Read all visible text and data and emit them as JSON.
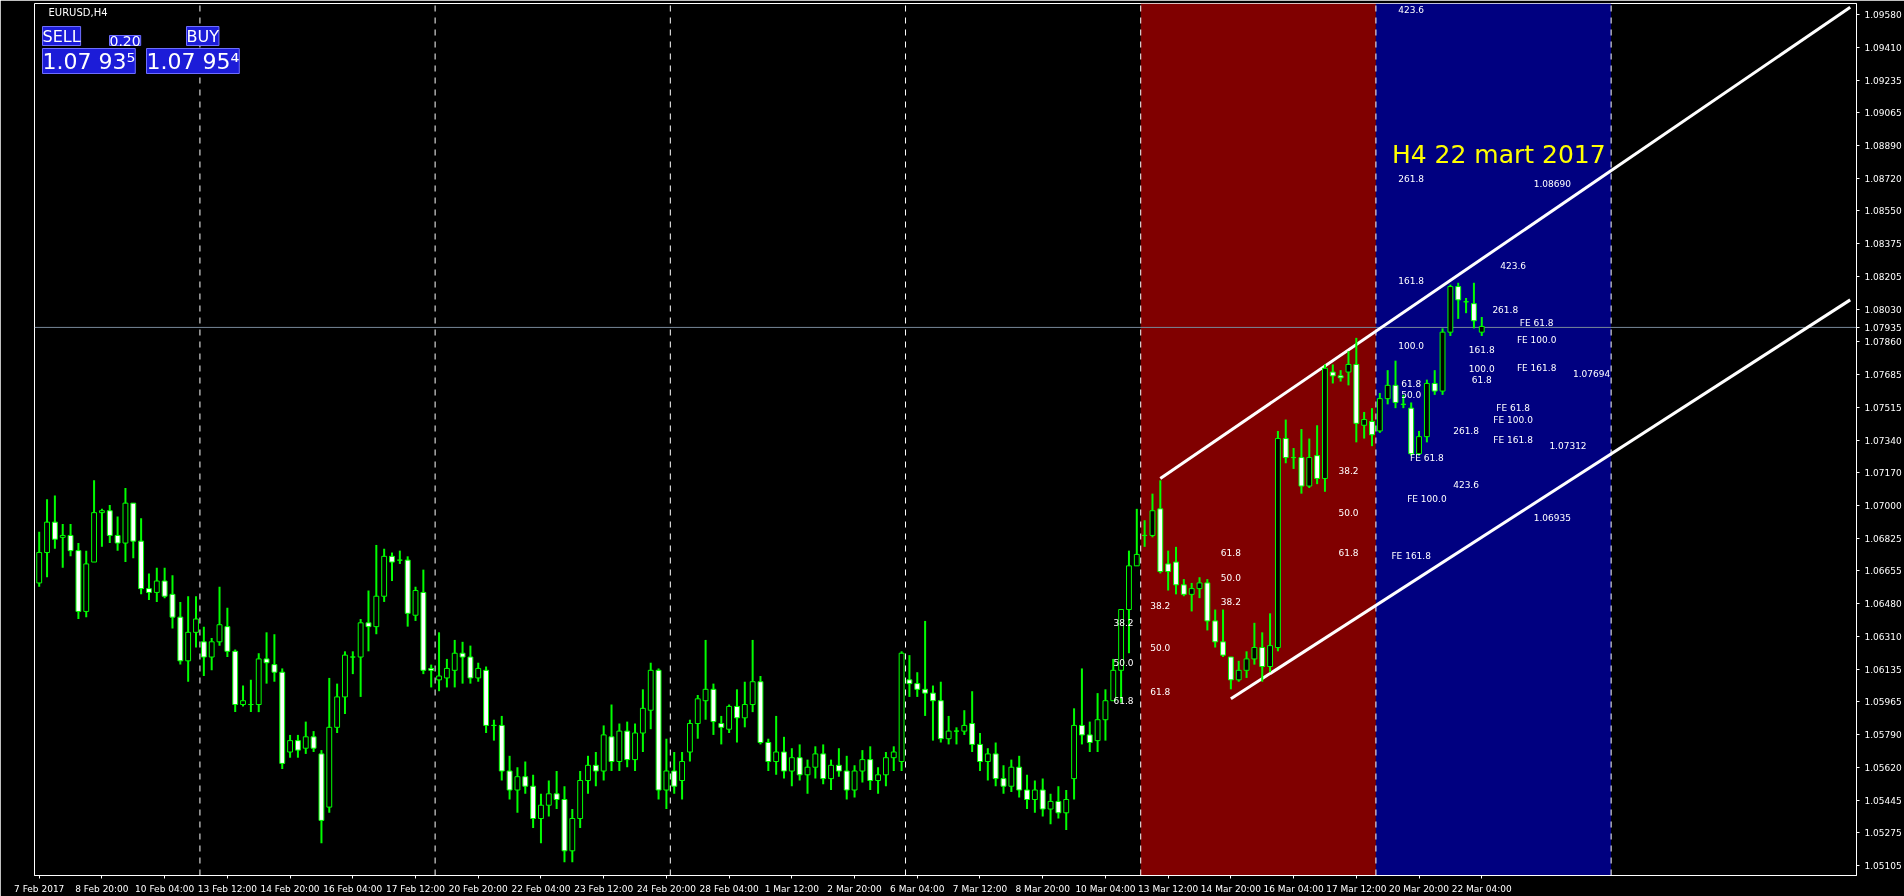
{
  "chart_data": {
    "type": "candlestick",
    "title": "EURUSD,H4",
    "subtitle": "H4  22  mart 2017",
    "color": "#00ff00",
    "categories": [
      "7 Feb 2017",
      null,
      null,
      null,
      null,
      null,
      null,
      null,
      "8 Feb 20:00",
      null,
      null,
      null,
      null,
      null,
      null,
      null,
      "10 Feb 04:00",
      null,
      null,
      null,
      null,
      null,
      null,
      null,
      "13 Feb 12:00",
      null,
      null,
      null,
      null,
      null,
      null,
      null,
      "14 Feb 20:00",
      null,
      null,
      null,
      null,
      null,
      null,
      null,
      "16 Feb 04:00",
      null,
      null,
      null,
      null,
      null,
      null,
      null,
      "17 Feb 12:00",
      null,
      null,
      null,
      null,
      null,
      null,
      null,
      "20 Feb 20:00",
      null,
      null,
      null,
      null,
      null,
      null,
      null,
      "22 Feb 04:00",
      null,
      null,
      null,
      null,
      null,
      null,
      null,
      "23 Feb 12:00",
      null,
      null,
      null,
      null,
      null,
      null,
      null,
      "24 Feb 20:00",
      null,
      null,
      null,
      null,
      null,
      null,
      null,
      "28 Feb 04:00",
      null,
      null,
      null,
      null,
      null,
      null,
      null,
      "1 Mar 12:00",
      null,
      null,
      null,
      null,
      null,
      null,
      null,
      "2 Mar 20:00",
      null,
      null,
      null,
      null,
      null,
      null,
      null,
      "6 Mar 04:00",
      null,
      null,
      null,
      null,
      null,
      null,
      null,
      "7 Mar 12:00",
      null,
      null,
      null,
      null,
      null,
      null,
      null,
      "8 Mar 20:00",
      null,
      null,
      null,
      null,
      null,
      null,
      null,
      "10 Mar 04:00",
      null,
      null,
      null,
      null,
      null,
      null,
      null,
      "13 Mar 12:00",
      null,
      null,
      null,
      null,
      null,
      null,
      null,
      "14 Mar 20:00",
      null,
      null,
      null,
      null,
      null,
      null,
      null,
      "16 Mar 04:00",
      null,
      null,
      null,
      null,
      null,
      null,
      null,
      "17 Mar 12:00",
      null,
      null,
      null,
      null,
      null,
      null,
      null,
      "20 Mar 20:00",
      null,
      null,
      null,
      null,
      null,
      null,
      null,
      "22 Mar 04:00",
      null,
      null,
      null,
      null,
      null,
      null,
      null,
      null,
      null,
      null,
      null,
      null,
      null,
      null,
      null,
      null,
      null,
      null,
      null,
      null,
      null,
      null,
      null,
      null,
      null,
      null,
      null,
      null,
      null,
      null,
      null,
      null,
      null,
      null,
      null,
      null,
      null,
      null,
      null,
      null,
      null,
      null,
      null,
      null,
      null,
      null,
      null
    ],
    "ohlc": [
      [
        1.0659,
        1.0686,
        1.0657,
        1.0675
      ],
      [
        1.0675,
        1.0703,
        1.0662,
        1.0691
      ],
      [
        1.0691,
        1.0705,
        1.0677,
        1.0682
      ],
      [
        1.0683,
        1.069,
        1.0667,
        1.0684
      ],
      [
        1.0684,
        1.069,
        1.0673,
        1.0676
      ],
      [
        1.0676,
        1.068,
        1.064,
        1.0644
      ],
      [
        1.0644,
        1.0676,
        1.0641,
        1.0669
      ],
      [
        1.067,
        1.0713,
        1.067,
        1.0696
      ],
      [
        1.0696,
        1.0698,
        1.0678,
        1.0697
      ],
      [
        1.0697,
        1.07,
        1.068,
        1.0684
      ],
      [
        1.0684,
        1.0694,
        1.0676,
        1.068
      ],
      [
        1.068,
        1.0709,
        1.067,
        1.0701
      ],
      [
        1.0701,
        1.0701,
        1.0672,
        1.0681
      ],
      [
        1.0681,
        1.0693,
        1.0653,
        1.0656
      ],
      [
        1.0656,
        1.0664,
        1.065,
        1.0654
      ],
      [
        1.0654,
        1.0667,
        1.0649,
        1.066
      ],
      [
        1.066,
        1.0667,
        1.0651,
        1.0652
      ],
      [
        1.0653,
        1.0663,
        1.0635,
        1.0641
      ],
      [
        1.0641,
        1.0649,
        1.0616,
        1.0618
      ],
      [
        1.0618,
        1.0652,
        1.0607,
        1.0633
      ],
      [
        1.0633,
        1.0652,
        1.0625,
        1.064
      ],
      [
        1.0628,
        1.0636,
        1.061,
        1.062
      ],
      [
        1.062,
        1.063,
        1.0613,
        1.0628
      ],
      [
        1.0628,
        1.0657,
        1.0626,
        1.0637
      ],
      [
        1.0636,
        1.0646,
        1.062,
        1.0623
      ],
      [
        1.0623,
        1.0624,
        1.0591,
        1.0595
      ],
      [
        1.0595,
        1.0605,
        1.0594,
        1.0597
      ],
      [
        1.0595,
        1.0608,
        1.0591,
        1.0595
      ],
      [
        1.0595,
        1.0622,
        1.0591,
        1.0619
      ],
      [
        1.0619,
        1.0633,
        1.0606,
        1.0617
      ],
      [
        1.0616,
        1.0632,
        1.0607,
        1.0612
      ],
      [
        1.0612,
        1.0614,
        1.0561,
        1.0564
      ],
      [
        1.057,
        1.0579,
        1.0567,
        1.0576
      ],
      [
        1.0576,
        1.0579,
        1.0567,
        1.0571
      ],
      [
        1.0572,
        1.0586,
        1.0569,
        1.0578
      ],
      [
        1.0578,
        1.0581,
        1.057,
        1.0572
      ],
      [
        1.0569,
        1.0571,
        1.0522,
        1.0534
      ],
      [
        1.0541,
        1.0609,
        1.0538,
        1.0583
      ],
      [
        1.0583,
        1.0606,
        1.058,
        1.0599
      ],
      [
        1.0599,
        1.0623,
        1.059,
        1.0621
      ],
      [
        1.062,
        1.0623,
        1.0611,
        1.062
      ],
      [
        1.062,
        1.064,
        1.0599,
        1.0638
      ],
      [
        1.0638,
        1.0655,
        1.0623,
        1.0636
      ],
      [
        1.0636,
        1.0679,
        1.0632,
        1.0652
      ],
      [
        1.0652,
        1.0677,
        1.0649,
        1.0673
      ],
      [
        1.0673,
        1.0675,
        1.066,
        1.067
      ],
      [
        1.0671,
        1.0676,
        1.0669,
        1.0671
      ],
      [
        1.0671,
        1.0673,
        1.0636,
        1.0643
      ],
      [
        1.0642,
        1.0657,
        1.0639,
        1.0655
      ],
      [
        1.0654,
        1.0666,
        1.0611,
        1.0613
      ],
      [
        1.0614,
        1.0616,
        1.0604,
        1.0613
      ],
      [
        1.0608,
        1.0633,
        1.0602,
        1.061
      ],
      [
        1.0609,
        1.0619,
        1.0604,
        1.0614
      ],
      [
        1.0613,
        1.0629,
        1.0604,
        1.0622
      ],
      [
        1.0622,
        1.0628,
        1.0606,
        1.062
      ],
      [
        1.062,
        1.0626,
        1.0606,
        1.0609
      ],
      [
        1.0609,
        1.0617,
        1.0607,
        1.0614
      ],
      [
        1.0613,
        1.0615,
        1.058,
        1.0584
      ],
      [
        1.0584,
        1.0587,
        1.0576,
        1.0584
      ],
      [
        1.0584,
        1.0589,
        1.0555,
        1.056
      ],
      [
        1.056,
        1.0568,
        1.0545,
        1.055
      ],
      [
        1.055,
        1.0562,
        1.0538,
        1.0557
      ],
      [
        1.0557,
        1.0565,
        1.0548,
        1.0552
      ],
      [
        1.0552,
        1.0558,
        1.053,
        1.0535
      ],
      [
        1.0535,
        1.0548,
        1.0522,
        1.0542
      ],
      [
        1.0542,
        1.0555,
        1.0536,
        1.0548
      ],
      [
        1.0548,
        1.056,
        1.054,
        1.0545
      ],
      [
        1.0545,
        1.0552,
        1.0512,
        1.0518
      ],
      [
        1.0518,
        1.054,
        1.0512,
        1.0535
      ],
      [
        1.0535,
        1.056,
        1.053,
        1.0555
      ],
      [
        1.0555,
        1.0568,
        1.0548,
        1.0563
      ],
      [
        1.0563,
        1.057,
        1.0552,
        1.056
      ],
      [
        1.056,
        1.0584,
        1.0555,
        1.0579
      ],
      [
        1.0578,
        1.0595,
        1.056,
        1.0565
      ],
      [
        1.0565,
        1.0585,
        1.056,
        1.0581
      ],
      [
        1.0581,
        1.0586,
        1.0562,
        1.0566
      ],
      [
        1.0566,
        1.0585,
        1.056,
        1.058
      ],
      [
        1.058,
        1.0603,
        1.057,
        1.0593
      ],
      [
        1.0592,
        1.0617,
        1.0582,
        1.0613
      ],
      [
        1.0613,
        1.0614,
        1.0545,
        1.055
      ],
      [
        1.055,
        1.0577,
        1.054,
        1.056
      ],
      [
        1.056,
        1.057,
        1.0548,
        1.0552
      ],
      [
        1.0555,
        1.057,
        1.0545,
        1.0565
      ],
      [
        1.057,
        1.0587,
        1.0565,
        1.0585
      ],
      [
        1.0585,
        1.06,
        1.0577,
        1.0598
      ],
      [
        1.0597,
        1.0629,
        1.0587,
        1.0603
      ],
      [
        1.0603,
        1.0606,
        1.0579,
        1.0586
      ],
      [
        1.0585,
        1.0589,
        1.0574,
        1.0583
      ],
      [
        1.0582,
        1.0595,
        1.058,
        1.0594
      ],
      [
        1.0594,
        1.0603,
        1.0575,
        1.0588
      ],
      [
        1.0588,
        1.0607,
        1.0583,
        1.0595
      ],
      [
        1.0595,
        1.0629,
        1.0591,
        1.0607
      ],
      [
        1.0607,
        1.061,
        1.0574,
        1.0575
      ],
      [
        1.0575,
        1.0577,
        1.056,
        1.0565
      ],
      [
        1.0565,
        1.0589,
        1.0558,
        1.057
      ],
      [
        1.057,
        1.0578,
        1.0556,
        1.056
      ],
      [
        1.056,
        1.0572,
        1.0552,
        1.0567
      ],
      [
        1.0567,
        1.0574,
        1.0555,
        1.0558
      ],
      [
        1.0558,
        1.0566,
        1.0548,
        1.0562
      ],
      [
        1.0562,
        1.0573,
        1.0556,
        1.0569
      ],
      [
        1.0569,
        1.0574,
        1.0553,
        1.0556
      ],
      [
        1.0556,
        1.0566,
        1.055,
        1.0563
      ],
      [
        1.0563,
        1.0572,
        1.0557,
        1.056
      ],
      [
        1.056,
        1.0568,
        1.0545,
        1.055
      ],
      [
        1.055,
        1.0563,
        1.0546,
        1.056
      ],
      [
        1.056,
        1.0571,
        1.0554,
        1.0566
      ],
      [
        1.0566,
        1.0573,
        1.055,
        1.0555
      ],
      [
        1.0555,
        1.0562,
        1.0548,
        1.0558
      ],
      [
        1.0558,
        1.057,
        1.0552,
        1.0567
      ],
      [
        1.0567,
        1.0573,
        1.056,
        1.057
      ],
      [
        1.0565,
        1.0623,
        1.056,
        1.0622
      ],
      [
        1.0608,
        1.0621,
        1.0599,
        1.0606
      ],
      [
        1.0606,
        1.0612,
        1.0599,
        1.0603
      ],
      [
        1.0603,
        1.0639,
        1.0589,
        1.0601
      ],
      [
        1.0601,
        1.0605,
        1.0576,
        1.0597
      ],
      [
        1.0597,
        1.0607,
        1.0575,
        1.0577
      ],
      [
        1.0577,
        1.0589,
        1.0574,
        1.0581
      ],
      [
        1.0581,
        1.0583,
        1.0574,
        1.0581
      ],
      [
        1.0581,
        1.0592,
        1.0579,
        1.0584
      ],
      [
        1.0585,
        1.0602,
        1.057,
        1.0574
      ],
      [
        1.0574,
        1.058,
        1.056,
        1.0565
      ],
      [
        1.0565,
        1.0572,
        1.0555,
        1.0569
      ],
      [
        1.0569,
        1.0575,
        1.0552,
        1.0556
      ],
      [
        1.0556,
        1.0563,
        1.0548,
        1.0552
      ],
      [
        1.0552,
        1.0566,
        1.0549,
        1.0562
      ],
      [
        1.0562,
        1.0568,
        1.0546,
        1.055
      ],
      [
        1.055,
        1.0558,
        1.054,
        1.0545
      ],
      [
        1.0545,
        1.0555,
        1.0538,
        1.055
      ],
      [
        1.055,
        1.0556,
        1.0536,
        1.054
      ],
      [
        1.054,
        1.0548,
        1.0532,
        1.0544
      ],
      [
        1.0544,
        1.0552,
        1.0535,
        1.0538
      ],
      [
        1.0538,
        1.055,
        1.0529,
        1.0545
      ],
      [
        1.0556,
        1.0593,
        1.0545,
        1.0584
      ],
      [
        1.0584,
        1.0614,
        1.0574,
        1.0579
      ],
      [
        1.0579,
        1.0586,
        1.057,
        1.0575
      ],
      [
        1.0576,
        1.0601,
        1.057,
        1.0587
      ],
      [
        1.0587,
        1.0603,
        1.0576,
        1.0597
      ],
      [
        1.0597,
        1.0619,
        1.0597,
        1.0613
      ],
      [
        1.0613,
        1.0645,
        1.0596,
        1.0645
      ],
      [
        1.0645,
        1.0676,
        1.0622,
        1.0668
      ],
      [
        1.0668,
        1.0698,
        1.0668,
        1.0674
      ],
      [
        1.0684,
        1.0692,
        1.0678,
        1.0684
      ],
      [
        1.0684,
        1.0706,
        1.0683,
        1.0697
      ],
      [
        1.0698,
        1.0713,
        1.0664,
        1.0665
      ],
      [
        1.0669,
        1.0676,
        1.0655,
        1.0665
      ],
      [
        1.067,
        1.0678,
        1.0653,
        1.0658
      ],
      [
        1.0658,
        1.0661,
        1.0652,
        1.0653
      ],
      [
        1.0653,
        1.0659,
        1.0644,
        1.0656
      ],
      [
        1.0656,
        1.0662,
        1.0651,
        1.0659
      ],
      [
        1.0659,
        1.0661,
        1.0634,
        1.0639
      ],
      [
        1.0639,
        1.0645,
        1.0625,
        1.0628
      ],
      [
        1.0628,
        1.0645,
        1.062,
        1.0621
      ],
      [
        1.062,
        1.062,
        1.0603,
        1.0608
      ],
      [
        1.0608,
        1.0618,
        1.0607,
        1.0613
      ],
      [
        1.0613,
        1.0623,
        1.0609,
        1.0619
      ],
      [
        1.0619,
        1.0638,
        1.0616,
        1.0625
      ],
      [
        1.0625,
        1.0633,
        1.0607,
        1.0615
      ],
      [
        1.0615,
        1.0643,
        1.0612,
        1.0626
      ],
      [
        1.0625,
        1.0739,
        1.0623,
        1.0735
      ],
      [
        1.0735,
        1.0745,
        1.0722,
        1.0725
      ],
      [
        1.0725,
        1.073,
        1.0719,
        1.0725
      ],
      [
        1.0725,
        1.074,
        1.0706,
        1.071
      ],
      [
        1.071,
        1.0735,
        1.0709,
        1.0725
      ],
      [
        1.0726,
        1.0742,
        1.0711,
        1.0714
      ],
      [
        1.0714,
        1.0774,
        1.0707,
        1.0772
      ],
      [
        1.077,
        1.0774,
        1.0764,
        1.0768
      ],
      [
        1.0768,
        1.0771,
        1.0765,
        1.0767
      ],
      [
        1.077,
        1.0781,
        1.0763,
        1.0774
      ],
      [
        1.0774,
        1.0788,
        1.0733,
        1.0743
      ],
      [
        1.0742,
        1.0749,
        1.0735,
        1.0745
      ],
      [
        1.0744,
        1.0751,
        1.0731,
        1.0737
      ],
      [
        1.0739,
        1.0759,
        1.0738,
        1.0756
      ],
      [
        1.0756,
        1.0771,
        1.0753,
        1.0763
      ],
      [
        1.0763,
        1.0776,
        1.0751,
        1.0754
      ],
      [
        1.0753,
        1.0758,
        1.0751,
        1.0753
      ],
      [
        1.0751,
        1.0754,
        1.0726,
        1.0727
      ],
      [
        1.0727,
        1.0739,
        1.0726,
        1.0736
      ],
      [
        1.0736,
        1.0766,
        1.0733,
        1.0764
      ],
      [
        1.0764,
        1.0771,
        1.0758,
        1.076
      ],
      [
        1.076,
        1.0793,
        1.0758,
        1.0791
      ],
      [
        1.0791,
        1.0816,
        1.0789,
        1.0815
      ],
      [
        1.0815,
        1.0817,
        1.0798,
        1.0808
      ],
      [
        1.0807,
        1.0809,
        1.0801,
        1.0807
      ],
      [
        1.0806,
        1.0817,
        1.0793,
        1.0797
      ],
      [
        1.0791,
        1.0799,
        1.0789,
        1.0794
      ],
      null,
      null,
      null,
      null,
      null,
      null,
      null,
      null,
      null,
      null,
      null,
      null,
      null,
      null,
      null,
      null,
      null,
      null,
      null,
      null,
      null,
      null,
      null,
      null,
      null,
      null,
      null,
      null,
      null,
      null,
      null,
      null,
      null,
      null,
      null,
      null,
      null,
      null,
      null,
      null,
      null,
      null,
      null,
      null,
      null,
      null,
      null
    ],
    "series": [
      {
        "type": "line",
        "color": "#ffffff",
        "values": [
          null,
          null,
          null,
          null,
          null,
          null,
          null,
          null,
          null,
          null,
          null,
          null,
          null,
          null,
          null,
          null,
          null,
          null,
          null,
          null,
          null,
          null,
          null,
          null,
          null,
          null,
          null,
          null,
          null,
          null,
          null,
          null,
          null,
          null,
          null,
          null,
          null,
          null,
          null,
          null,
          null,
          null,
          null,
          null,
          null,
          null,
          null,
          null,
          null,
          null,
          null,
          null,
          null,
          null,
          null,
          null,
          null,
          null,
          null,
          null,
          null,
          null,
          null,
          null,
          null,
          null,
          null,
          null,
          null,
          null,
          null,
          null,
          null,
          null,
          null,
          null,
          null,
          null,
          null,
          null,
          null,
          null,
          null,
          null,
          null,
          null,
          null,
          null,
          null,
          null,
          null,
          null,
          null,
          null,
          null,
          null,
          null,
          null,
          null,
          null,
          null,
          null,
          null,
          null,
          null,
          null,
          null,
          null,
          null,
          null,
          null,
          null,
          null,
          null,
          null,
          null,
          null,
          null,
          null,
          null,
          null,
          null,
          null,
          null,
          null,
          null,
          null,
          null,
          null,
          null,
          null,
          null,
          null,
          null,
          null,
          null,
          null,
          null,
          null,
          null,
          null,
          null,
          null,
          1.0714,
          null,
          null,
          null,
          null,
          null,
          null,
          null,
          null,
          null,
          null,
          null,
          null,
          null,
          null,
          null,
          null,
          null,
          null,
          null,
          null,
          null,
          null,
          null,
          null,
          null,
          null,
          null,
          null,
          null,
          null,
          null,
          null,
          null,
          null,
          null,
          null,
          null,
          null,
          null,
          null,
          null,
          null,
          null,
          null,
          null,
          null,
          null,
          null,
          null,
          null,
          null,
          null,
          null,
          null,
          null,
          null,
          null,
          null,
          null,
          null,
          null,
          null,
          null,
          null,
          null,
          null,
          null,
          null,
          null,
          null,
          null,
          null,
          null,
          null,
          null,
          null,
          null,
          null,
          null,
          null,
          null,
          null,
          null,
          null,
          null,
          null,
          null,
          1.0962
        ]
      },
      {
        "type": "line",
        "color": "#ffffff",
        "values": [
          null,
          null,
          null,
          null,
          null,
          null,
          null,
          null,
          null,
          null,
          null,
          null,
          null,
          null,
          null,
          null,
          null,
          null,
          null,
          null,
          null,
          null,
          null,
          null,
          null,
          null,
          null,
          null,
          null,
          null,
          null,
          null,
          null,
          null,
          null,
          null,
          null,
          null,
          null,
          null,
          null,
          null,
          null,
          null,
          null,
          null,
          null,
          null,
          null,
          null,
          null,
          null,
          null,
          null,
          null,
          null,
          null,
          null,
          null,
          null,
          null,
          null,
          null,
          null,
          null,
          null,
          null,
          null,
          null,
          null,
          null,
          null,
          null,
          null,
          null,
          null,
          null,
          null,
          null,
          null,
          null,
          null,
          null,
          null,
          null,
          null,
          null,
          null,
          null,
          null,
          null,
          null,
          null,
          null,
          null,
          null,
          null,
          null,
          null,
          null,
          null,
          null,
          null,
          null,
          null,
          null,
          null,
          null,
          null,
          null,
          null,
          null,
          null,
          null,
          null,
          null,
          null,
          null,
          null,
          null,
          null,
          null,
          null,
          null,
          null,
          null,
          null,
          null,
          null,
          null,
          null,
          null,
          null,
          null,
          null,
          null,
          null,
          null,
          null,
          null,
          null,
          null,
          null,
          null,
          null,
          null,
          null,
          null,
          null,
          null,
          null,
          null,
          1.0598,
          null,
          null,
          null,
          null,
          null,
          null,
          null,
          null,
          null,
          null,
          null,
          null,
          null,
          null,
          null,
          null,
          null,
          null,
          null,
          null,
          null,
          null,
          null,
          null,
          null,
          null,
          null,
          null,
          null,
          null,
          null,
          null,
          null,
          null,
          null,
          null,
          null,
          null,
          null,
          null,
          null,
          null,
          null,
          null,
          null,
          null,
          null,
          null,
          null,
          null,
          null,
          null,
          null,
          null,
          null,
          null,
          null,
          null,
          null,
          null,
          null,
          null,
          null,
          null,
          null,
          null,
          null,
          null,
          null,
          null,
          null,
          null,
          null,
          null,
          null,
          null,
          null,
          null,
          1.0808
        ]
      }
    ],
    "ylim": [
      1.0505,
      1.0964
    ],
    "yticks": [
      {
        "value": 1.05105,
        "label": "1.05105"
      },
      {
        "value": 1.05275,
        "label": "1.05275"
      },
      {
        "value": 1.05445,
        "label": "1.05445"
      },
      {
        "value": 1.0562,
        "label": "1.05620"
      },
      {
        "value": 1.0579,
        "label": "1.05790"
      },
      {
        "value": 1.05965,
        "label": "1.05965"
      },
      {
        "value": 1.06135,
        "label": "1.06135"
      },
      {
        "value": 1.0631,
        "label": "1.06310"
      },
      {
        "value": 1.0648,
        "label": "1.06480"
      },
      {
        "value": 1.06655,
        "label": "1.06655"
      },
      {
        "value": 1.06825,
        "label": "1.06825"
      },
      {
        "value": 1.07,
        "label": "1.07000"
      },
      {
        "value": 1.0717,
        "label": "1.07170"
      },
      {
        "value": 1.0734,
        "label": "1.07340"
      },
      {
        "value": 1.07515,
        "label": "1.07515"
      },
      {
        "value": 1.07685,
        "label": "1.07685"
      },
      {
        "value": 1.0786,
        "label": "1.07860"
      },
      {
        "value": 1.0803,
        "label": "1.08030"
      },
      {
        "value": 1.08205,
        "label": "1.08205"
      },
      {
        "value": 1.08375,
        "label": "1.08375"
      },
      {
        "value": 1.0855,
        "label": "1.08550"
      },
      {
        "value": 1.0872,
        "label": "1.08720"
      },
      {
        "value": 1.0889,
        "label": "1.08890"
      },
      {
        "value": 1.09065,
        "label": "1.09065"
      },
      {
        "value": 1.09235,
        "label": "1.09235"
      },
      {
        "value": 1.0941,
        "label": "1.09410"
      },
      {
        "value": 1.0958,
        "label": "1.09580"
      }
    ],
    "ref_lines": [
      {
        "axis": "y",
        "value": 1.07935,
        "label": "1.07935",
        "color": "#778899"
      }
    ],
    "annotations": [
      "SELL",
      "0.20",
      "BUY",
      "1.07 93⁵",
      "1.07 95⁴",
      "61.8",
      "50.0",
      "38.2",
      "38.2",
      "50.0",
      "61.8",
      "38.2",
      "50.0",
      "61.8",
      "38.2",
      "50.0",
      "61.8",
      "423.6",
      "261.8",
      "161.8",
      "100.0",
      "61.8",
      "50.0",
      "423.6",
      "261.8",
      "161.8",
      "100.0",
      "61.8",
      "FE 61.8",
      "FE 100.0",
      "FE 161.8",
      "FE 61.8",
      "FE 100.0",
      "FE 161.8",
      "261.8",
      "423.6",
      "FE 61.8",
      "FE 100.0",
      "FE 161.8",
      "1.08690",
      "1.07694",
      "1.07312",
      "1.06935"
    ]
  }
}
